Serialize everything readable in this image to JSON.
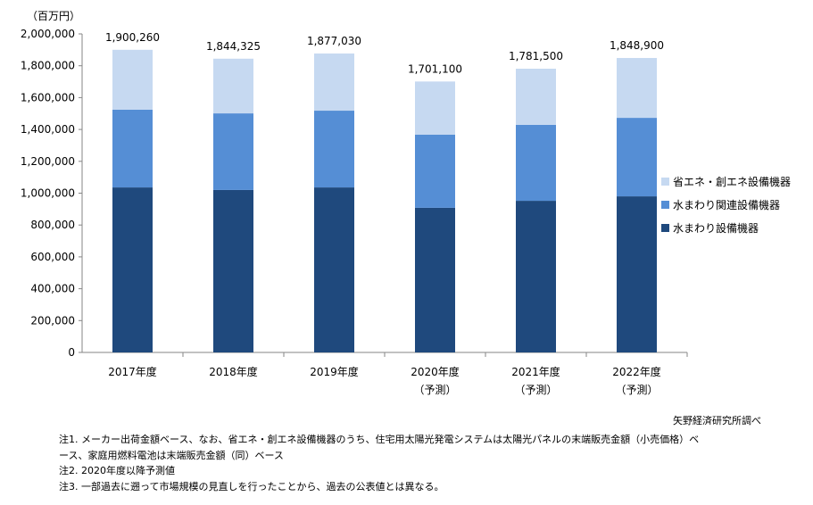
{
  "chart_data": {
    "type": "bar",
    "stacked": true,
    "unit_label": "（百万円）",
    "categories": [
      {
        "label": "2017年度",
        "sub": ""
      },
      {
        "label": "2018年度",
        "sub": ""
      },
      {
        "label": "2019年度",
        "sub": ""
      },
      {
        "label": "2020年度",
        "sub": "（予測）"
      },
      {
        "label": "2021年度",
        "sub": "（予測）"
      },
      {
        "label": "2022年度",
        "sub": "（予測）"
      }
    ],
    "series": [
      {
        "name": "水まわり設備機器",
        "color": "#1f497d",
        "values": [
          1036000,
          1020000,
          1036000,
          908000,
          952000,
          980000
        ]
      },
      {
        "name": "水まわり関連設備機器",
        "color": "#558ed5",
        "values": [
          488000,
          481000,
          482000,
          459000,
          477000,
          493000
        ]
      },
      {
        "name": "省エネ・創エネ設備機器",
        "color": "#c6d9f1",
        "values": [
          376260,
          343325,
          359030,
          334100,
          352500,
          375900
        ]
      }
    ],
    "totals": [
      "1,900,260",
      "1,844,325",
      "1,877,030",
      "1,701,100",
      "1,781,500",
      "1,848,900"
    ],
    "yticks": [
      "0",
      "200,000",
      "400,000",
      "600,000",
      "800,000",
      "1,000,000",
      "1,200,000",
      "1,400,000",
      "1,600,000",
      "1,800,000",
      "2,000,000"
    ],
    "ylim": [
      0,
      2000000
    ],
    "legend_position": "right",
    "grid": false
  },
  "source": "矢野経済研究所調べ",
  "notes": [
    "注1. メーカー出荷金額ベース、なお、省エネ・創エネ設備機器のうち、住宅用太陽光発電システムは太陽光パネルの末端販売金額（小売価格）ベース、家庭用燃料電池は末端販売金額（同）ベース",
    "注2. 2020年度以降予測値",
    "注3. 一部過去に遡って市場規模の見直しを行ったことから、過去の公表値とは異なる。"
  ]
}
